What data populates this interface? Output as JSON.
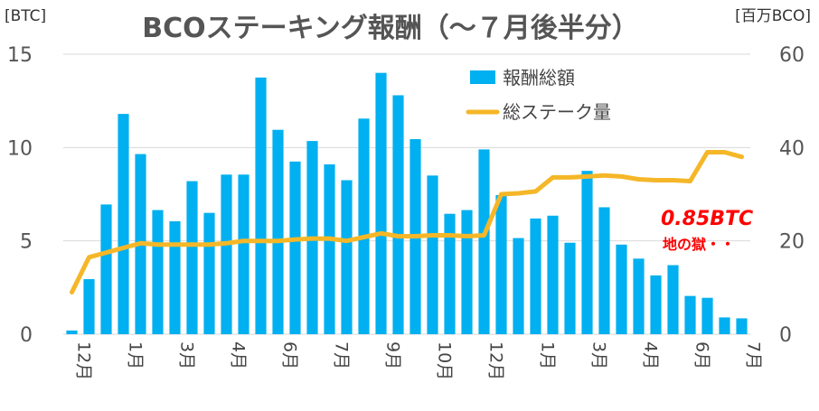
{
  "chart_data": {
    "type": "bar",
    "title": "BCOステーキング報酬（～７月後半分）",
    "y_left_unit": "[BTC]",
    "y_right_unit": "[百万BCO]",
    "ylim_left": [
      0,
      15
    ],
    "ylim_right": [
      0,
      60
    ],
    "yticks_left": [
      "0",
      "5",
      "10",
      "15"
    ],
    "yticks_right": [
      "0",
      "20",
      "40",
      "60"
    ],
    "grid": true,
    "legend_position": "top-right",
    "x_tick_labels": [
      {
        "index": 0,
        "label": "12月"
      },
      {
        "index": 3,
        "label": "1月"
      },
      {
        "index": 6,
        "label": "3月"
      },
      {
        "index": 9,
        "label": "4月"
      },
      {
        "index": 12,
        "label": "6月"
      },
      {
        "index": 15,
        "label": "7月"
      },
      {
        "index": 18,
        "label": "9月"
      },
      {
        "index": 21,
        "label": "10月"
      },
      {
        "index": 24,
        "label": "12月"
      },
      {
        "index": 27,
        "label": "1月"
      },
      {
        "index": 30,
        "label": "3月"
      },
      {
        "index": 33,
        "label": "4月"
      },
      {
        "index": 36,
        "label": "6月"
      },
      {
        "index": 39,
        "label": "7月"
      }
    ],
    "series": [
      {
        "name": "報酬総額",
        "type": "bar",
        "axis": "left",
        "color": "#00B0F0",
        "values": [
          0.2,
          2.95,
          6.95,
          11.8,
          9.65,
          6.65,
          6.05,
          8.2,
          6.5,
          8.55,
          8.55,
          13.75,
          10.95,
          9.25,
          10.35,
          9.1,
          8.25,
          11.55,
          14.0,
          12.8,
          10.45,
          8.5,
          6.45,
          6.65,
          9.9,
          7.45,
          5.15,
          6.2,
          6.35,
          4.9,
          8.75,
          6.8,
          4.8,
          4.05,
          3.15,
          3.7,
          2.05,
          1.95,
          0.9,
          0.85
        ]
      },
      {
        "name": "総ステーク量",
        "type": "line",
        "axis": "right",
        "color": "#F5B728",
        "values": [
          9.0,
          16.5,
          17.5,
          18.5,
          19.5,
          19.2,
          19.2,
          19.2,
          19.2,
          19.5,
          20.0,
          20.0,
          20.0,
          20.3,
          20.5,
          20.5,
          20.0,
          20.8,
          21.6,
          21.0,
          21.0,
          21.2,
          21.2,
          21.0,
          21.2,
          30.0,
          30.2,
          30.6,
          33.6,
          33.6,
          33.8,
          34.0,
          33.8,
          33.2,
          33.0,
          33.0,
          32.8,
          39.0,
          39.0,
          38.0
        ]
      }
    ],
    "annotations": [
      {
        "text": "0.85BTC",
        "color": "#FF0000"
      },
      {
        "text": "地の獄・・",
        "color": "#FF0000"
      }
    ]
  }
}
